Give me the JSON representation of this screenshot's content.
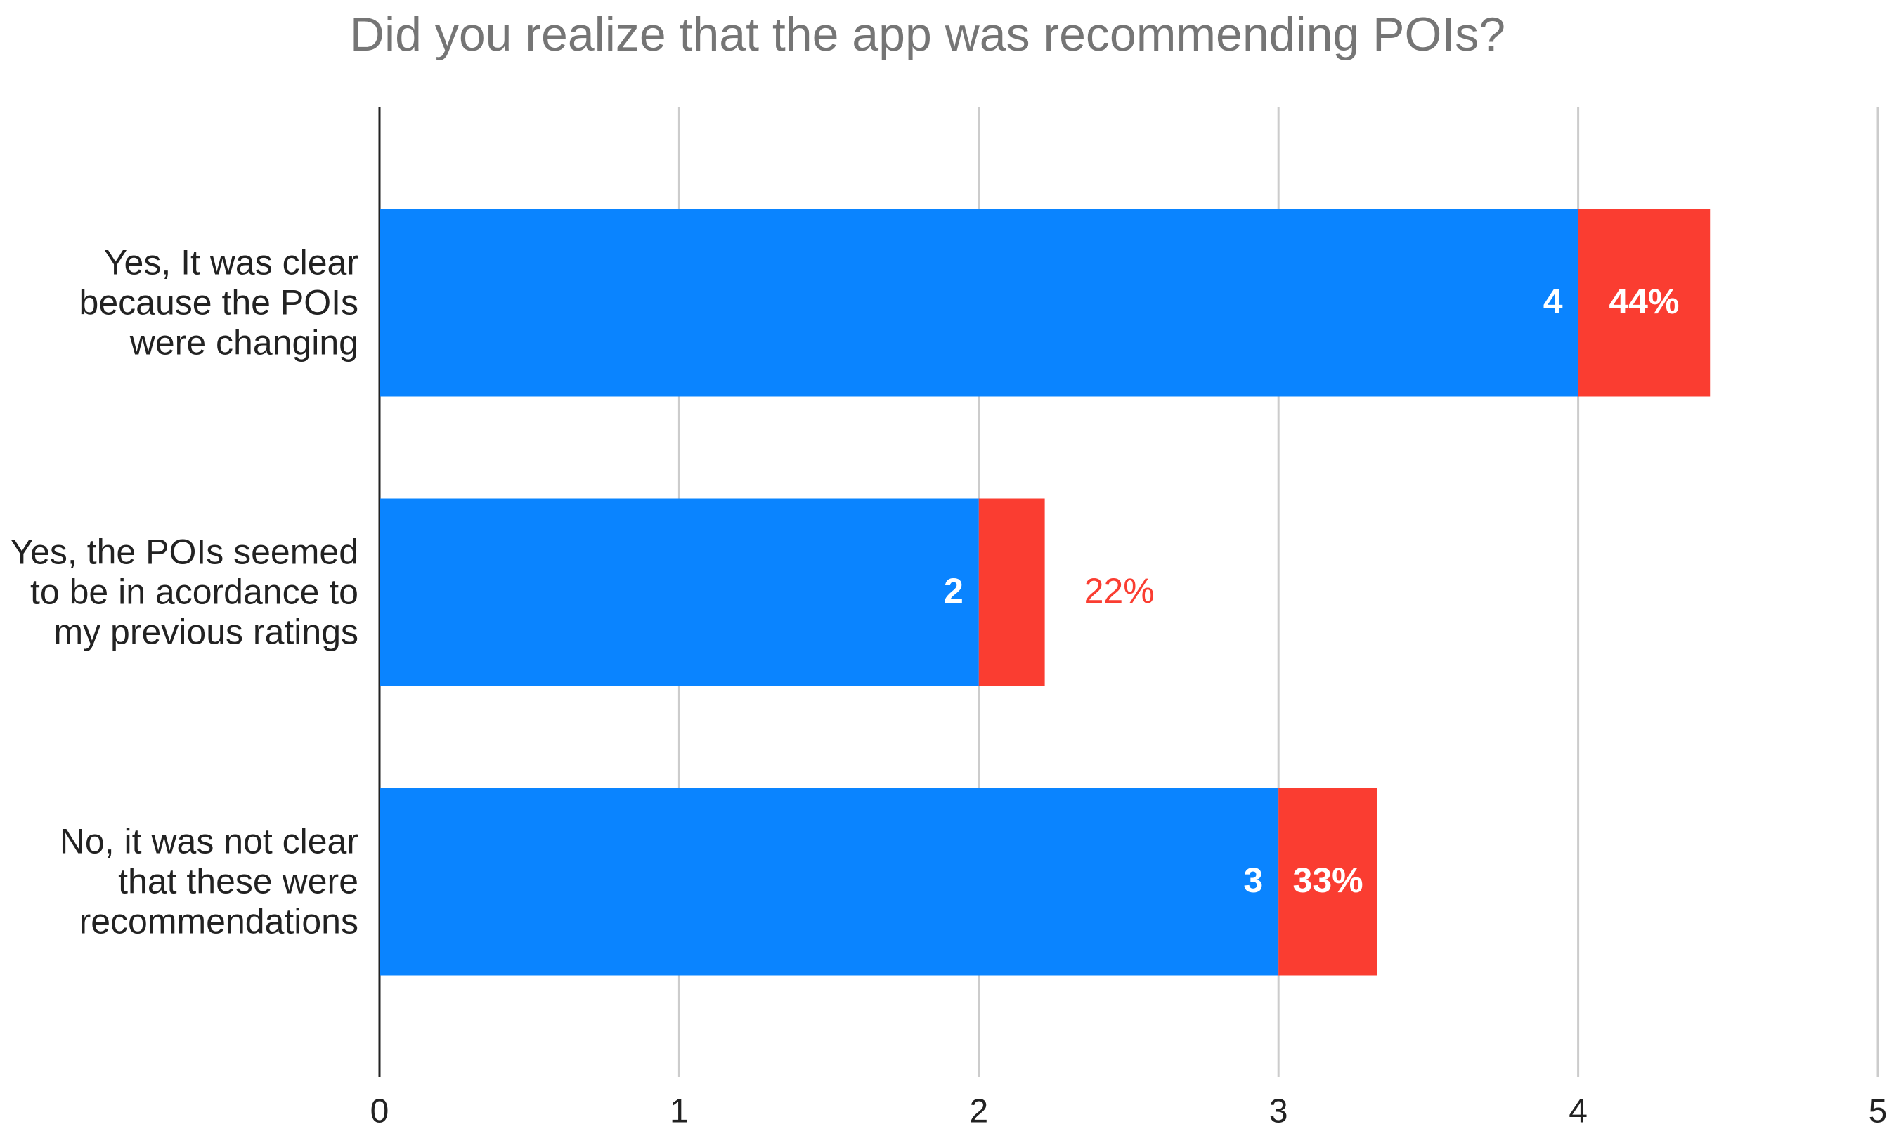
{
  "chart_data": {
    "type": "stacked-bar-horizontal",
    "title": "Did you realize that the app was recommending POIs?",
    "categories": [
      "Yes, It was clear because the POIs were changing",
      "Yes, the POIs seemed to be in acordance to my previous ratings",
      "No, it was not clear that these were recommendations"
    ],
    "series": [
      {
        "color": "#0a84ff",
        "values": [
          4,
          2,
          3
        ]
      },
      {
        "color": "#fa3d31",
        "values": [
          0.44,
          0.22,
          0.33
        ],
        "value_labels": [
          "44%",
          "22%",
          "33%"
        ]
      }
    ],
    "xlim": [
      0,
      5
    ],
    "xticks": [
      0,
      1,
      2,
      3,
      4,
      5
    ],
    "grid": true
  }
}
